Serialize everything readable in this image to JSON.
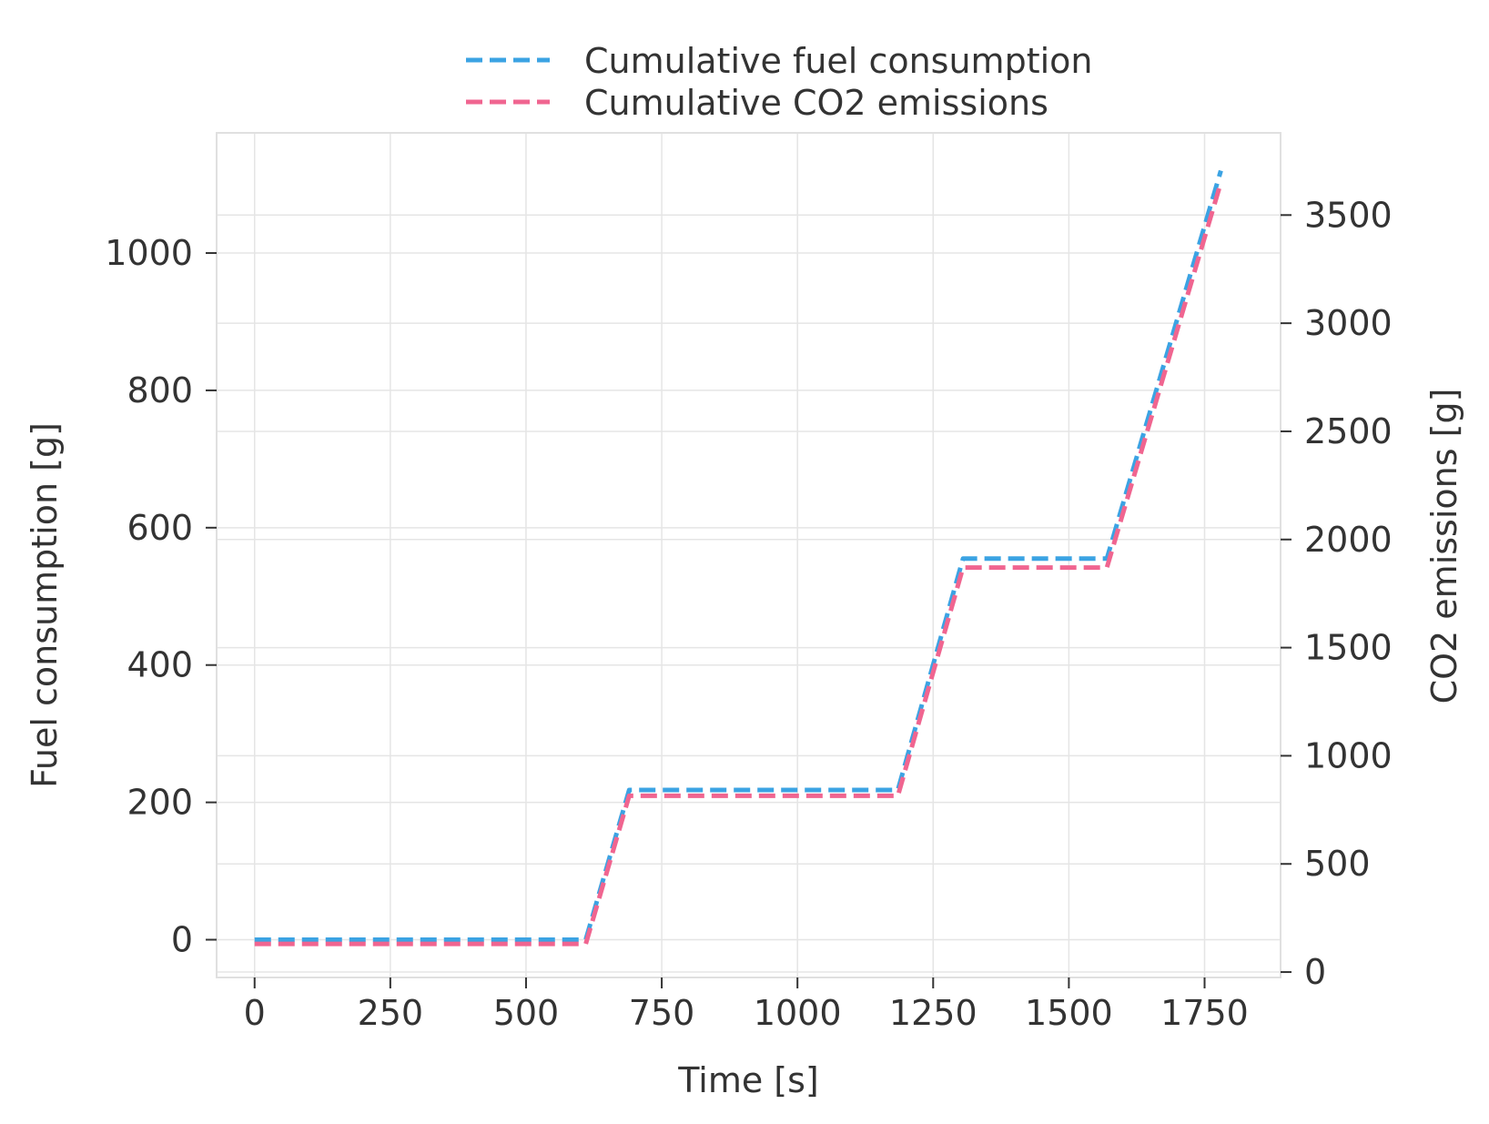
{
  "chart_data": {
    "type": "line",
    "title": "",
    "xlabel": "Time [s]",
    "ylabel_left": "Fuel consumption [g]",
    "ylabel_right": "CO2 emissions [g]",
    "xlim": [
      -70,
      1890
    ],
    "ylim_left": [
      -55,
      1175
    ],
    "ylim_right": [
      -25,
      3880
    ],
    "x_ticks": [
      0,
      250,
      500,
      750,
      1000,
      1250,
      1500,
      1750
    ],
    "y_ticks_left": [
      0,
      200,
      400,
      600,
      800,
      1000
    ],
    "y_ticks_right": [
      0,
      500,
      1000,
      1500,
      2000,
      2500,
      3000,
      3500
    ],
    "grid": true,
    "legend_position": "top-center",
    "colors": {
      "fuel": "#3ba3e3",
      "co2": "#f06590",
      "text": "#333333",
      "grid": "#e5e5e5"
    },
    "series": [
      {
        "name": "Cumulative fuel consumption",
        "axis": "left",
        "x": [
          0,
          610,
          690,
          1185,
          1305,
          1570,
          1780
        ],
        "values": [
          0,
          0,
          218,
          218,
          555,
          555,
          1120
        ]
      },
      {
        "name": "Cumulative CO2 emissions",
        "axis": "right",
        "x": [
          0,
          610,
          690,
          1185,
          1305,
          1570,
          1780
        ],
        "values": [
          130,
          130,
          815,
          815,
          1870,
          1870,
          3650
        ]
      }
    ]
  }
}
